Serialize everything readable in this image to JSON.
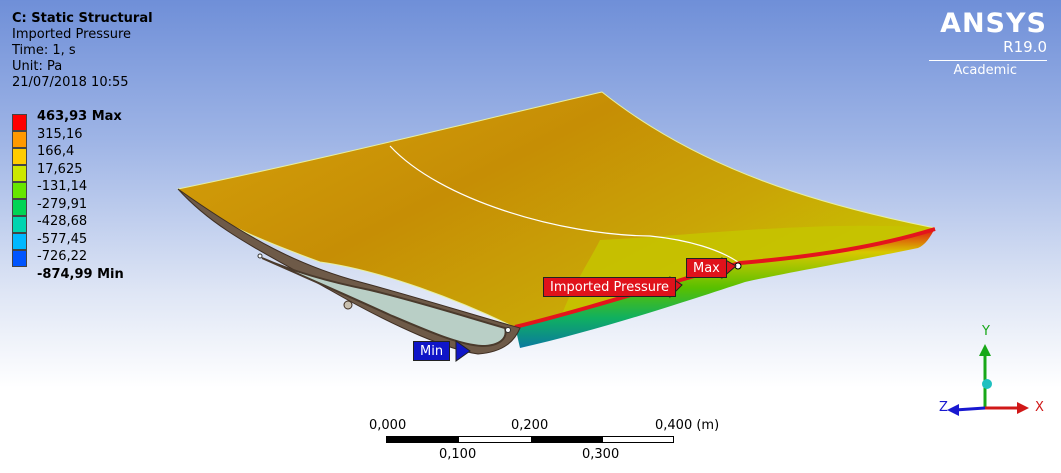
{
  "header": {
    "analysis": "C: Static Structural",
    "result": "Imported Pressure",
    "time": "Time: 1, s",
    "unit": "Unit: Pa",
    "timestamp": "21/07/2018 10:55"
  },
  "legend": {
    "max_label": "463,93 Max",
    "values": [
      "315,16",
      "166,4",
      "17,625",
      "-131,14",
      "-279,91",
      "-428,68",
      "-577,45",
      "-726,22"
    ],
    "min_label": "-874,99 Min",
    "colors": [
      "#ff0000",
      "#ff9900",
      "#ffcc00",
      "#cce800",
      "#66e600",
      "#00d455",
      "#00d4b0",
      "#00b8ff",
      "#0055ff"
    ]
  },
  "brand": {
    "name": "ANSYS",
    "version": "R19.0",
    "license": "Academic"
  },
  "annotations": {
    "max": "Max",
    "imported_pressure": "Imported Pressure",
    "min": "Min"
  },
  "scale_bar": {
    "top_labels": [
      "0,000",
      "0,200",
      "0,400 (m)"
    ],
    "bottom_labels": [
      "0,100",
      "0,300"
    ]
  },
  "triad": {
    "x": "X",
    "y": "Y",
    "z": "Z",
    "x_color": "#d01818",
    "y_color": "#18a818",
    "z_color": "#1818d0"
  }
}
